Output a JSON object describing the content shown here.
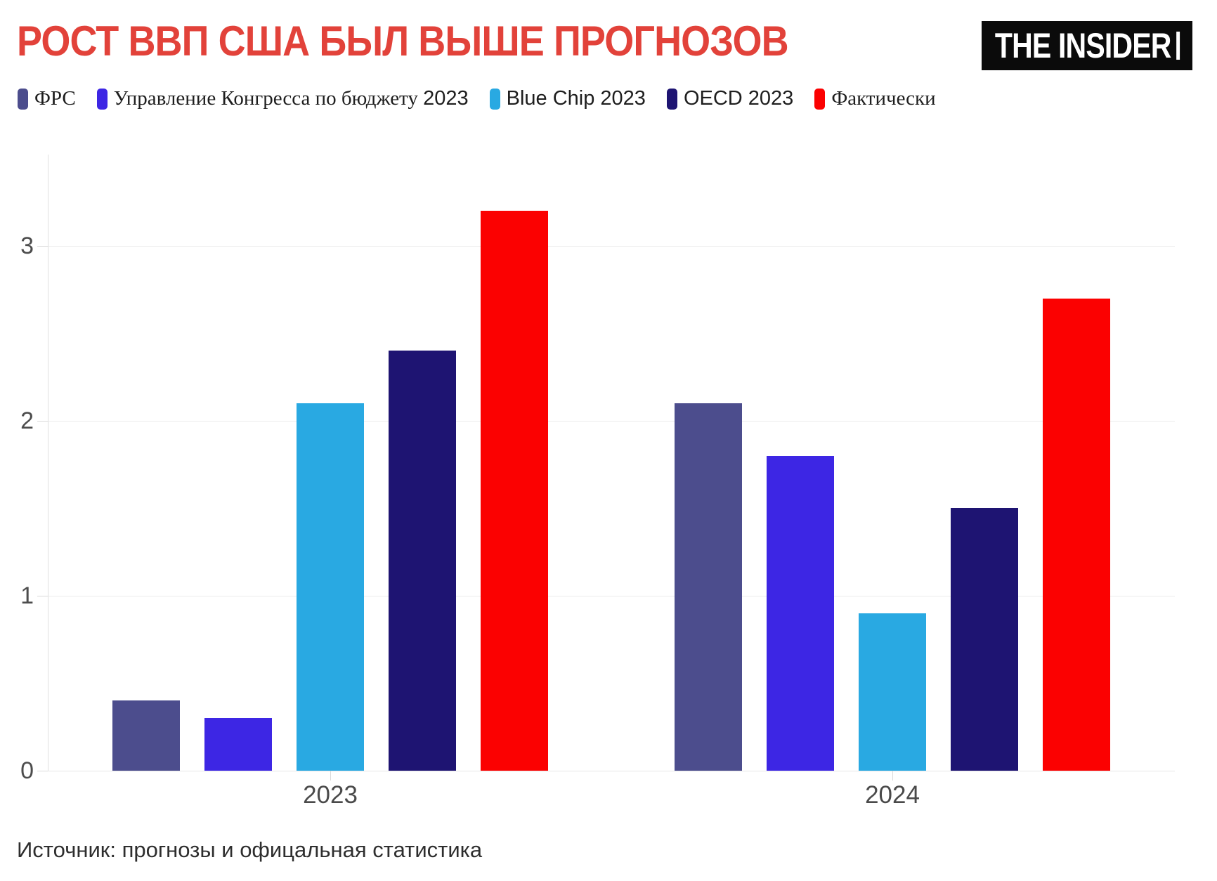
{
  "title": "РОСТ ВВП США БЫЛ ВЫШЕ ПРОГНОЗОВ",
  "logo_text": "THE INSIDER",
  "source": "Источник: прогнозы и офицальная статистика",
  "accent_color": "#e2423a",
  "legend": {
    "items": [
      {
        "series": "ФРС",
        "color": "#4c4d8d",
        "parts": [
          {
            "text": "ФРС",
            "font": "serif"
          }
        ]
      },
      {
        "series": "Управление Конгресса по бюджету 2023",
        "color": "#3d26e4",
        "parts": [
          {
            "text": "Управление Конгресса по бюджету ",
            "font": "serif"
          },
          {
            "text": "2023",
            "font": "sans"
          }
        ]
      },
      {
        "series": "Blue Chip 2023",
        "color": "#29a9e2",
        "parts": [
          {
            "text": "Blue Chip 2023",
            "font": "sans"
          }
        ]
      },
      {
        "series": "OECD 2023",
        "color": "#1e1472",
        "parts": [
          {
            "text": "OECD 2023",
            "font": "sans"
          }
        ]
      },
      {
        "series": "Фактически",
        "color": "#fb0101",
        "parts": [
          {
            "text": "Фактически",
            "font": "serif"
          }
        ]
      }
    ]
  },
  "chart_data": {
    "type": "bar",
    "title": "РОСТ ВВП США БЫЛ ВЫШЕ ПРОГНОЗОВ",
    "categories": [
      "2023",
      "2024"
    ],
    "series": [
      {
        "name": "ФРС",
        "color": "#4c4d8d",
        "values": [
          0.4,
          2.1
        ]
      },
      {
        "name": "Управление Конгресса по бюджету 2023",
        "color": "#3d26e4",
        "values": [
          0.3,
          1.8
        ]
      },
      {
        "name": "Blue Chip 2023",
        "color": "#29a9e2",
        "values": [
          2.1,
          0.9
        ]
      },
      {
        "name": "OECD 2023",
        "color": "#1e1472",
        "values": [
          2.4,
          1.5
        ]
      },
      {
        "name": "Фактически",
        "color": "#fb0101",
        "values": [
          3.2,
          2.7
        ]
      }
    ],
    "xlabel": "",
    "ylabel": "",
    "ylim": [
      0,
      3.5
    ],
    "yticks": [
      0,
      1,
      2,
      3
    ],
    "grid": true,
    "legend_position": "top"
  }
}
